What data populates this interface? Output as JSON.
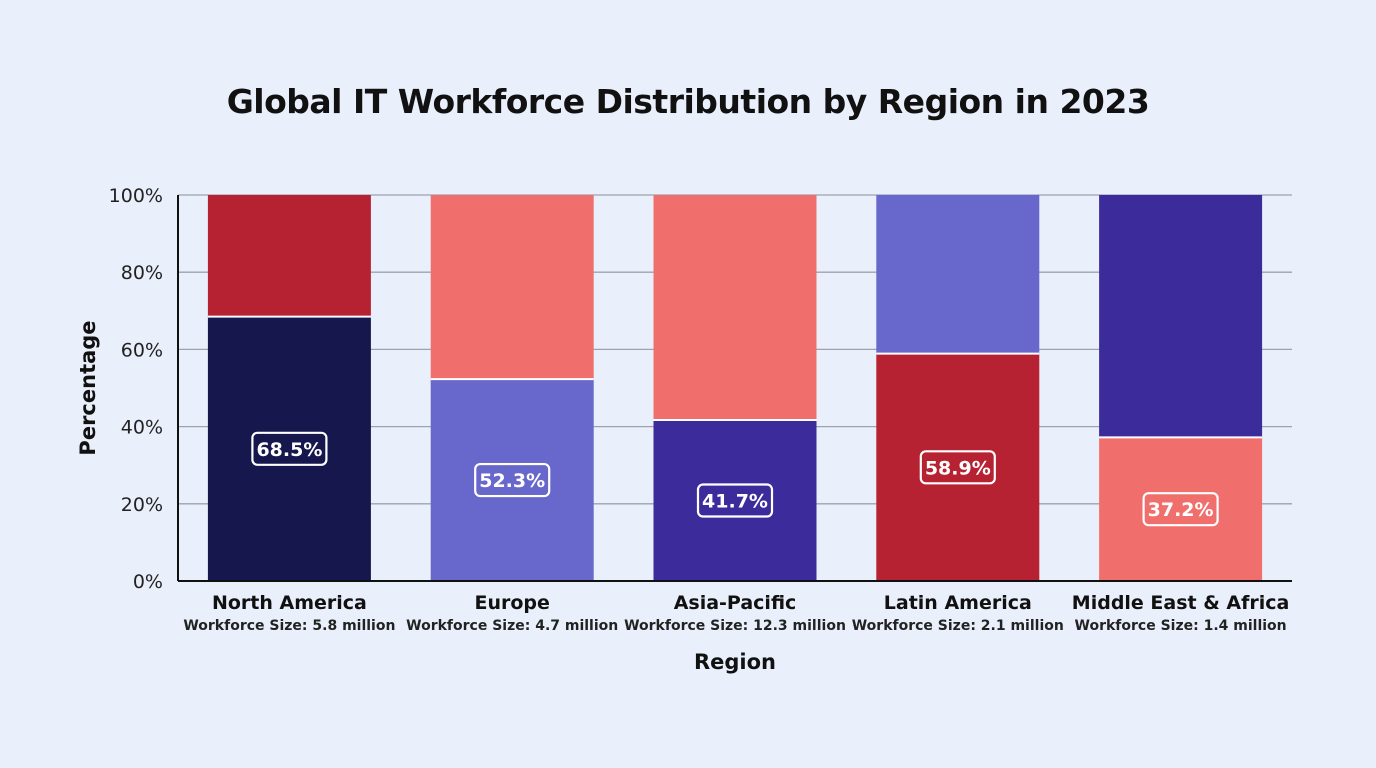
{
  "chart_data": {
    "type": "bar",
    "stacked": true,
    "title": "Global IT Workforce Distribution by Region in 2023",
    "xlabel": "Region",
    "ylabel": "Percentage",
    "ylim": [
      0,
      100
    ],
    "y_ticks": [
      "0%",
      "20%",
      "40%",
      "60%",
      "80%",
      "100%"
    ],
    "grid": true,
    "categories": [
      "North America",
      "Europe",
      "Asia-Pacific",
      "Latin America",
      "Middle East & Africa"
    ],
    "category_subtitles": [
      "Workforce Size: 5.8 million",
      "Workforce Size: 4.7 million",
      "Workforce Size: 12.3 million",
      "Workforce Size: 2.1 million",
      "Workforce Size: 1.4 million"
    ],
    "bars": [
      {
        "bottom": 68.5,
        "label": "68.5%",
        "bottom_color": "#15174d",
        "top_color": "#b72233"
      },
      {
        "bottom": 52.3,
        "label": "52.3%",
        "bottom_color": "#6868cc",
        "top_color": "#f06f6c"
      },
      {
        "bottom": 41.7,
        "label": "41.7%",
        "bottom_color": "#3c2c9b",
        "top_color": "#f06f6c"
      },
      {
        "bottom": 58.9,
        "label": "58.9%",
        "bottom_color": "#b72233",
        "top_color": "#6868cc"
      },
      {
        "bottom": 37.2,
        "label": "37.2%",
        "bottom_color": "#f06f6c",
        "top_color": "#3c2c9b"
      }
    ]
  }
}
